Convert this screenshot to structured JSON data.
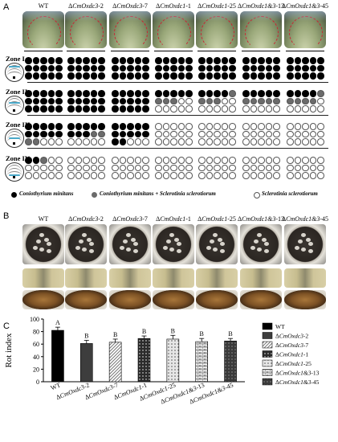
{
  "panel_a": {
    "letter": "A",
    "strains": [
      "WT",
      "ΔCmOxdc3-2",
      "ΔCmOxdc3-7",
      "ΔCmOxdc1-1",
      "ΔCmOxdc1-25",
      "ΔCmOxdc1&3-13",
      "ΔCmOxdc1&3-45"
    ],
    "zones": [
      {
        "label": "Zone I",
        "rows": 3,
        "cols": 5,
        "black": [
          15,
          15,
          15,
          15,
          15,
          15,
          15
        ],
        "gray": [
          0,
          0,
          0,
          0,
          0,
          0,
          0
        ]
      },
      {
        "label": "Zone II",
        "rows": 3,
        "cols": 5,
        "black": [
          15,
          15,
          15,
          5,
          4,
          5,
          4
        ],
        "gray": [
          0,
          0,
          0,
          3,
          4,
          5,
          5
        ]
      },
      {
        "label": "Zone III",
        "rows": 3,
        "cols": 5,
        "black": [
          10,
          8,
          12,
          0,
          0,
          0,
          0
        ],
        "gray": [
          2,
          2,
          0,
          0,
          0,
          0,
          0
        ]
      },
      {
        "label": "Zone IV",
        "rows": 3,
        "cols": 5,
        "black": [
          2,
          0,
          0,
          0,
          0,
          0,
          0
        ],
        "gray": [
          1,
          0,
          0,
          0,
          0,
          0,
          0
        ]
      }
    ],
    "legend": [
      {
        "label": "Coniothyrium minitans",
        "color": "#000000"
      },
      {
        "label": "Coniothyrium minitans + Sclerotinia sclerotiorum",
        "color": "#6b6b6b"
      },
      {
        "label": "Sclerotinia sclerotiorum",
        "color": "#ffffff"
      }
    ]
  },
  "panel_b": {
    "letter": "B",
    "strains": [
      "WT",
      "ΔCmOxdc3-2",
      "ΔCmOxdc3-7",
      "ΔCmOxdc1-1",
      "ΔCmOxdc1-25",
      "ΔCmOxdc1&3-13",
      "ΔCmOxdc1&3-45"
    ]
  },
  "chart_data": {
    "type": "bar",
    "letter": "C",
    "categories": [
      "WT",
      "ΔCmOxdc3-2",
      "ΔCmOxdc3-7",
      "ΔCmOxdc1-1",
      "ΔCmOxdc1-25",
      "ΔCmOxdc1&3-13",
      "ΔCmOxdc1&3-45"
    ],
    "values": [
      82,
      61,
      63,
      69,
      68,
      64,
      65
    ],
    "errors": [
      5,
      5,
      5,
      4,
      6,
      5,
      4
    ],
    "significance": [
      "A",
      "B",
      "B",
      "B",
      "B",
      "B",
      "B"
    ],
    "ylabel": "Rot index",
    "ylim": [
      0,
      100
    ],
    "yticks": [
      0,
      20,
      40,
      60,
      80,
      100
    ],
    "legend": [
      "WT",
      "ΔCmOxdc3-2",
      "ΔCmOxdc3-7",
      "ΔCmOxdc1-1",
      "ΔCmOxdc1-25",
      "ΔCmOxdc1&3-13",
      "ΔCmOxdc1&3-45"
    ],
    "legend_position": "right",
    "patterns": [
      "solid-black",
      "dark-gray",
      "diagonal-hatch",
      "dots-dark",
      "dots-light",
      "bricks",
      "dots-dark-2"
    ]
  }
}
